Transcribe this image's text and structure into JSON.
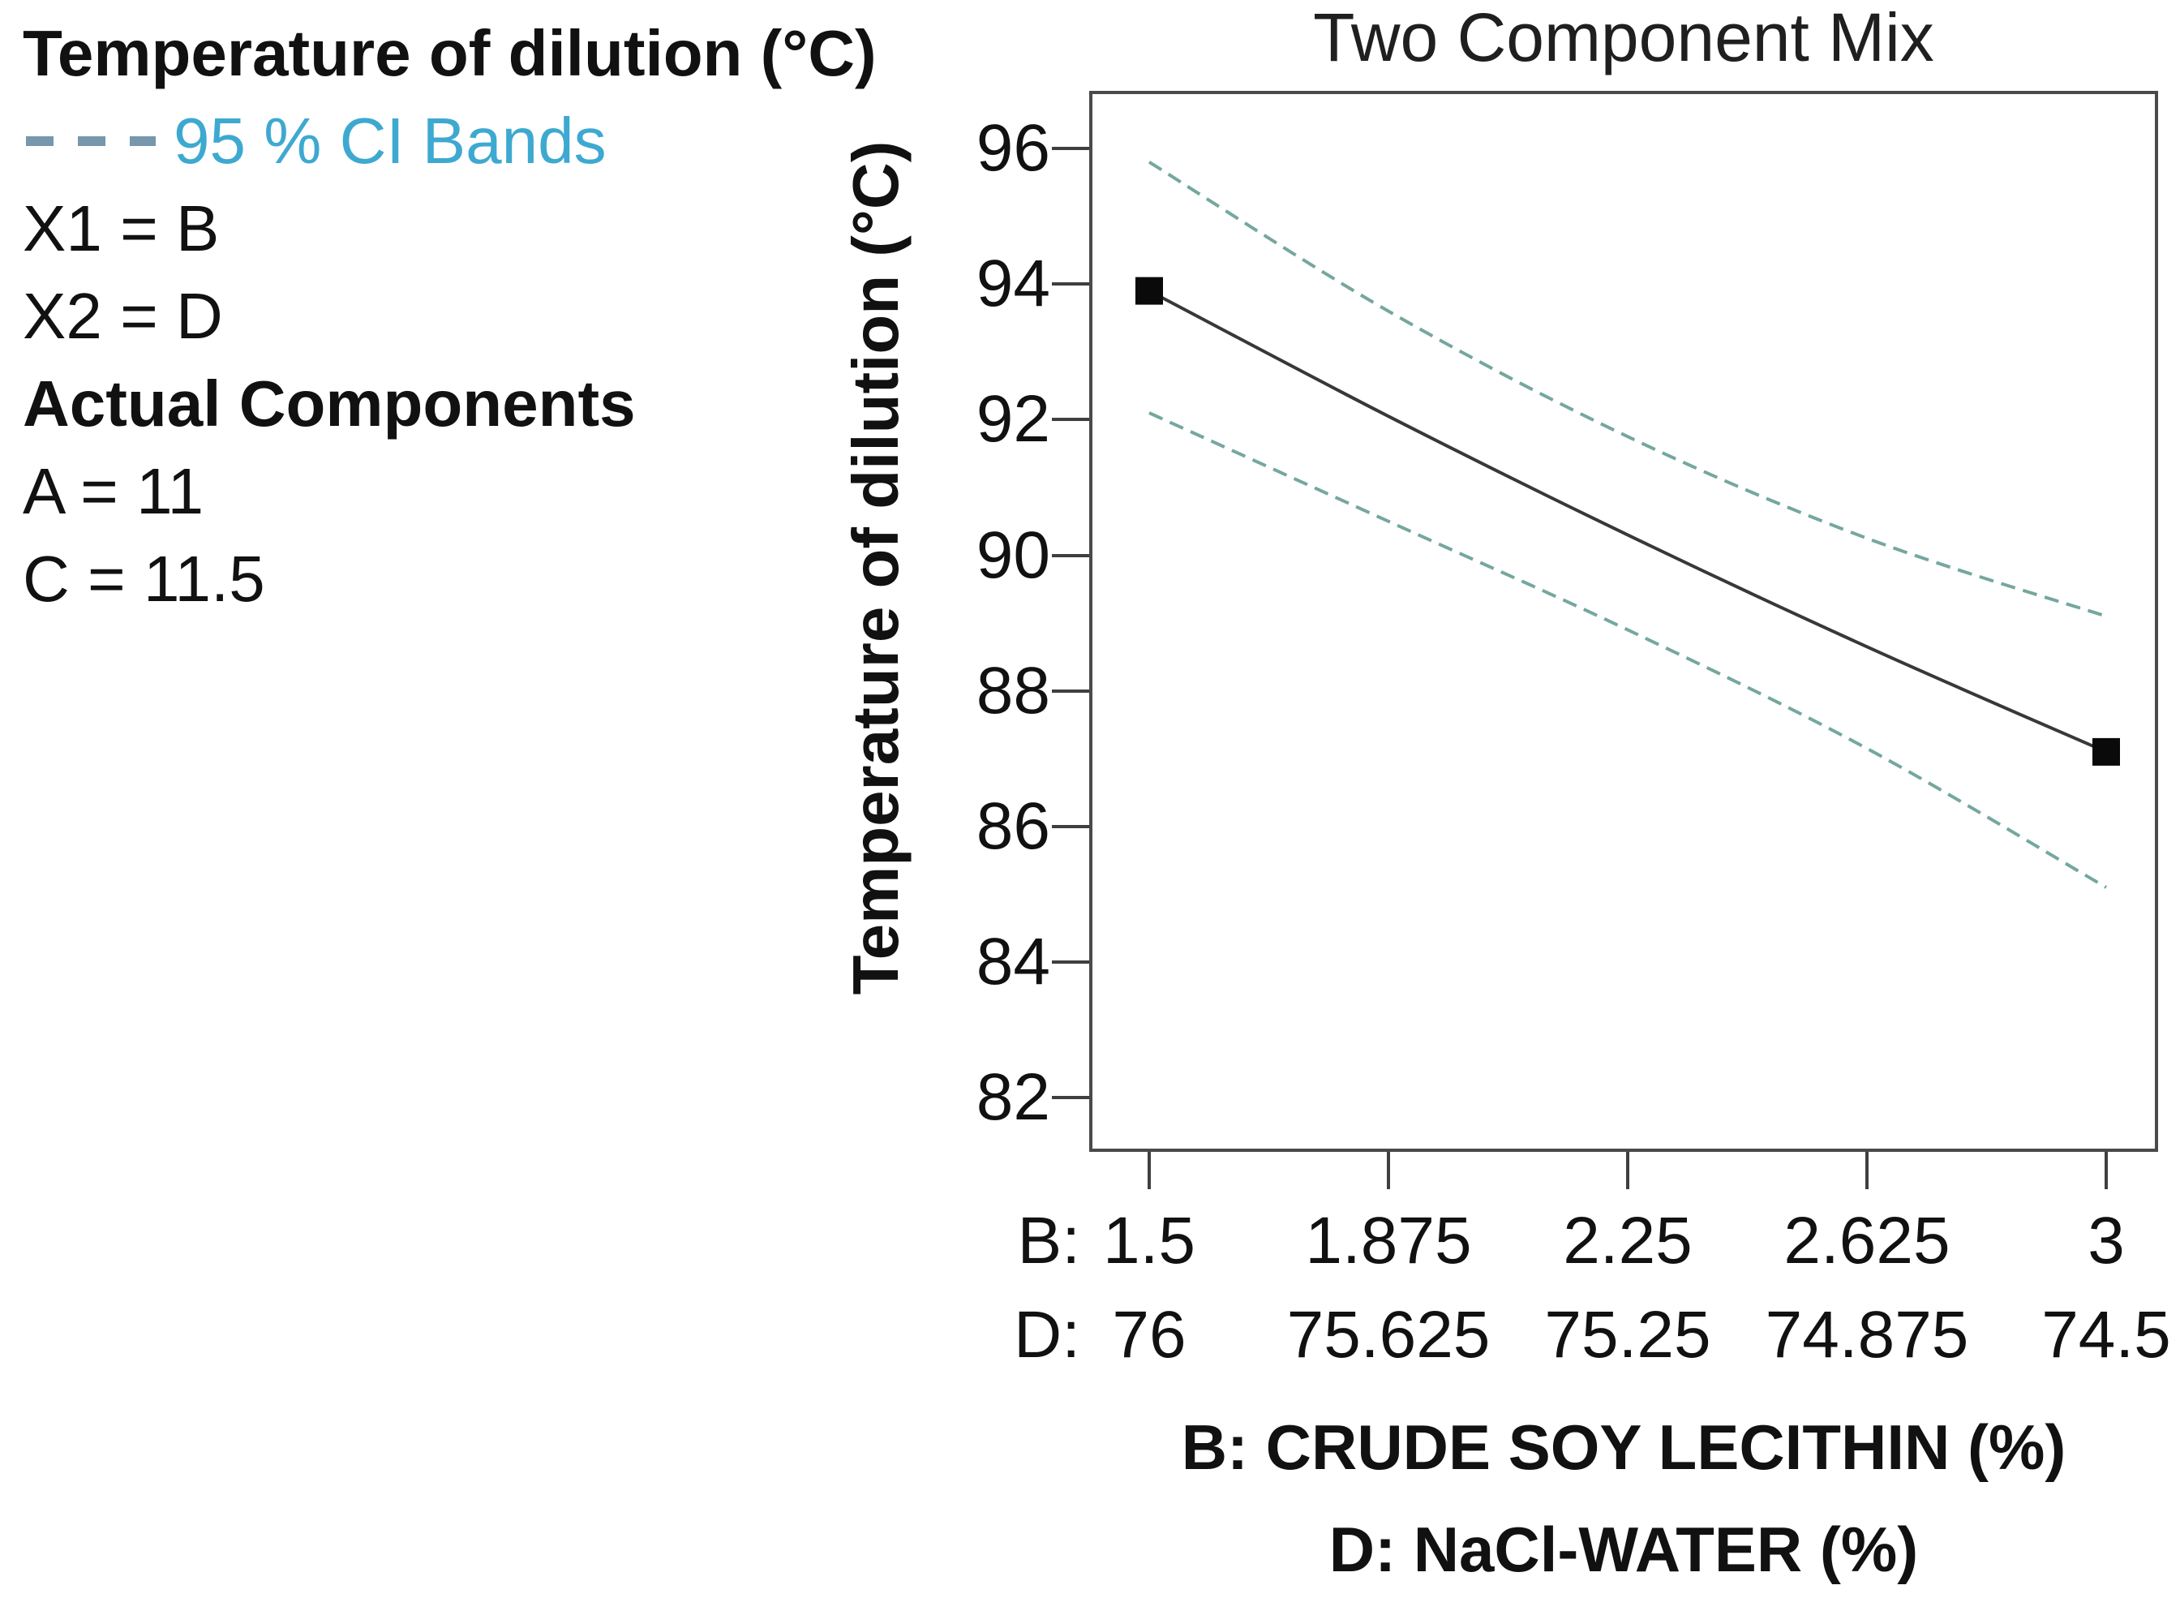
{
  "legend": {
    "title": "Temperature of dilution (°C)",
    "ci_label": "95 % CI Bands",
    "x1": "X1 = B",
    "x2": "X2 = D",
    "actual_title": "Actual Components",
    "a": "A = 11",
    "c": "C = 11.5"
  },
  "chart": {
    "title": "Two Component Mix",
    "y_axis_title": "Temperature of dilution (°C)",
    "x_axis_title_line1": "B: CRUDE SOY LECITHIN (%)",
    "x_axis_title_line2": "D: NaCl-WATER (%)",
    "x_prefix_b": "B:",
    "x_prefix_d": "D:"
  },
  "colors": {
    "ci_band": "#74a79f",
    "mean_line": "#383838",
    "marker": "#0a0a0a",
    "frame": "#4a4a4a",
    "tick": "#3f3f3f",
    "legend_ci_text": "#3ea9d0",
    "legend_ci_dash": "#7697ac",
    "text": "#111111"
  },
  "chart_data": {
    "type": "line",
    "title": "Two Component Mix",
    "ylabel": "Temperature of dilution (°C)",
    "xlabel_line1": "B: CRUDE SOY LECITHIN (%)",
    "xlabel_line2": "D: NaCl-WATER (%)",
    "grid": false,
    "legend_entries": [
      "95 % CI Bands"
    ],
    "y_ticks": [
      96,
      94,
      92,
      90,
      88,
      86,
      84,
      82
    ],
    "ylim": [
      81.2,
      96.85
    ],
    "x_ticks_B": [
      1.5,
      1.875,
      2.25,
      2.625,
      3
    ],
    "x_ticks_D": [
      76,
      75.625,
      75.25,
      74.875,
      74.5
    ],
    "xlim_B": [
      1.41,
      3.08
    ],
    "series": [
      {
        "name": "predicted-mean",
        "style": "solid",
        "color_key": "mean_line",
        "x": [
          1.5,
          1.875,
          2.25,
          2.625,
          3
        ],
        "y": [
          93.9,
          92.05,
          90.3,
          88.65,
          87.1
        ],
        "endpoint_markers": "filled-square"
      },
      {
        "name": "ci-upper",
        "style": "dashed",
        "color_key": "ci_band",
        "x": [
          1.5,
          1.875,
          2.25,
          2.625,
          3
        ],
        "y": [
          95.8,
          93.6,
          91.75,
          90.25,
          89.1
        ]
      },
      {
        "name": "ci-lower",
        "style": "dashed",
        "color_key": "ci_band",
        "x": [
          1.5,
          1.875,
          2.25,
          2.625,
          3
        ],
        "y": [
          92.1,
          90.5,
          88.9,
          87.15,
          85.1
        ]
      }
    ]
  }
}
